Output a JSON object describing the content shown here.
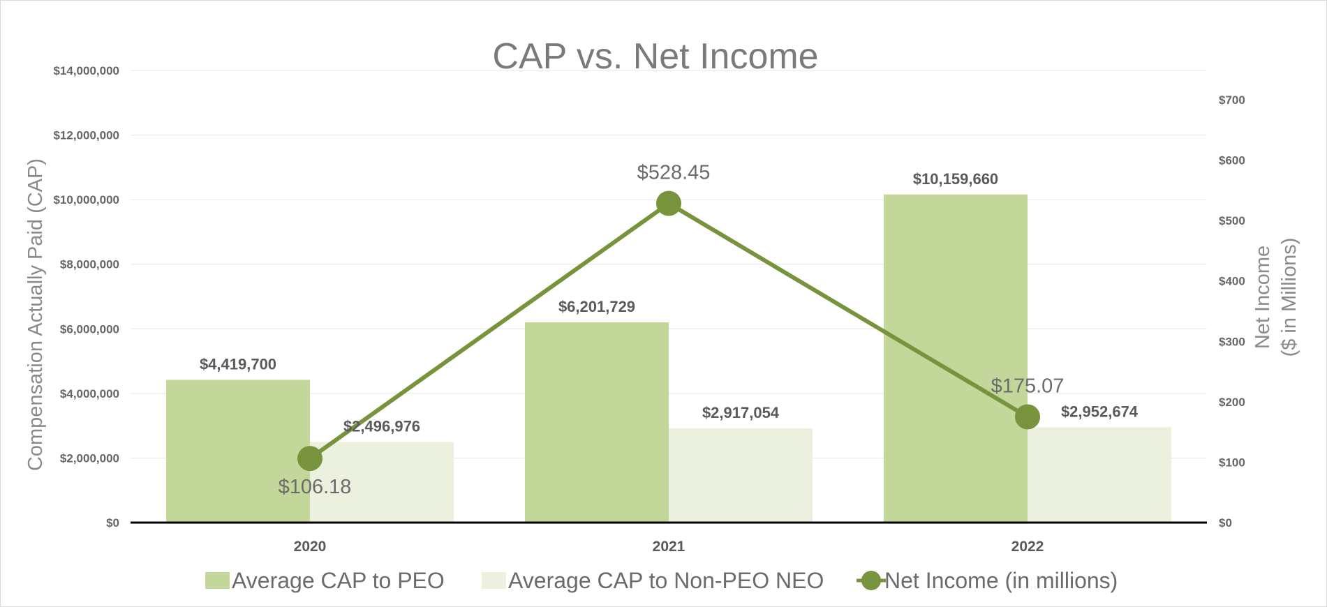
{
  "colors": {
    "peo": "#c4d79b",
    "non_peo": "#ebf1de",
    "net_income": "#77933c",
    "grid": "#e6e6e6",
    "baseline": "#000000"
  },
  "chart_data": {
    "type": "bar",
    "title": "CAP vs. Net Income",
    "categories": [
      "2020",
      "2021",
      "2022"
    ],
    "ylabel": "Compensation Actually Paid (CAP)",
    "y2label_line1": "Net Income",
    "y2label_line2": "($ in Millions)",
    "ylim": [
      0,
      14000000
    ],
    "y2lim": [
      0,
      750
    ],
    "yticks": [
      0,
      2000000,
      4000000,
      6000000,
      8000000,
      10000000,
      12000000,
      14000000
    ],
    "ytick_labels": [
      "$0",
      "$2,000,000",
      "$4,000,000",
      "$6,000,000",
      "$8,000,000",
      "$10,000,000",
      "$12,000,000",
      "$14,000,000"
    ],
    "y2ticks": [
      0,
      100,
      200,
      300,
      400,
      500,
      600,
      700
    ],
    "y2tick_labels": [
      "$0",
      "$100",
      "$200",
      "$300",
      "$400",
      "$500",
      "$600",
      "$700"
    ],
    "grid": true,
    "legend_position": "bottom",
    "series": [
      {
        "name": "Average CAP to PEO",
        "kind": "bar",
        "axis": "left",
        "values": [
          4419700,
          6201729,
          10159660
        ],
        "labels": [
          "$4,419,700",
          "$6,201,729",
          "$10,159,660"
        ]
      },
      {
        "name": "Average CAP to Non-PEO NEO",
        "kind": "bar",
        "axis": "left",
        "values": [
          2496976,
          2917054,
          2952674
        ],
        "labels": [
          "$2,496,976",
          "$2,917,054",
          "$2,952,674"
        ]
      },
      {
        "name": "Net Income (in millions)",
        "kind": "line",
        "axis": "right",
        "values": [
          106.18,
          528.45,
          175.07
        ],
        "labels": [
          "$106.18",
          "$528.45",
          "$175.07"
        ]
      }
    ]
  }
}
